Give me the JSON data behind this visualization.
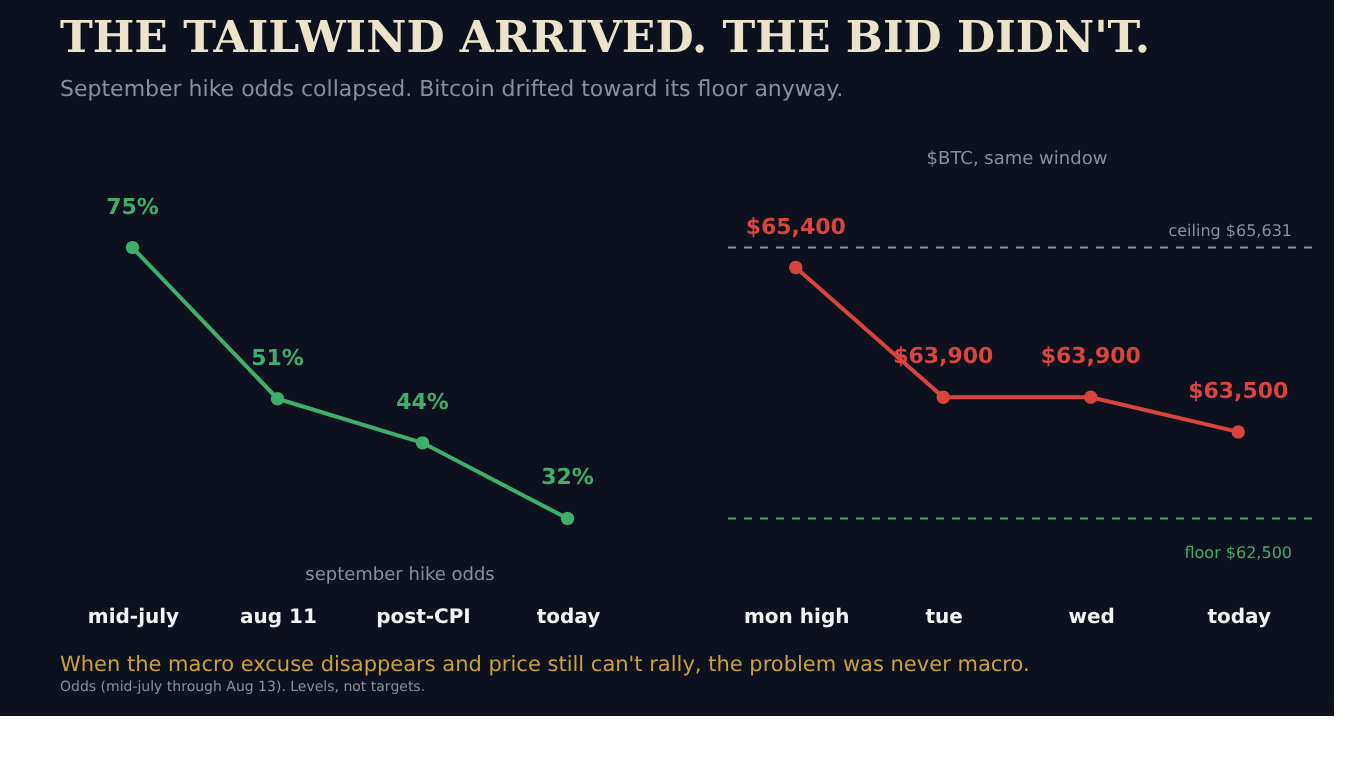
{
  "chart_data": [
    {
      "type": "line",
      "title": "THE TAILWIND ARRIVED. THE BID DIDN'T.",
      "subtitle": "September hike odds collapsed. Bitcoin drifted toward its floor anyway.",
      "categories": [
        "mid-july",
        "aug 11",
        "post-CPI",
        "today"
      ],
      "series": [
        {
          "color": "#3fae6a",
          "values": [
            75,
            51,
            44,
            32
          ],
          "value_labels": [
            "75%",
            "51%",
            "44%",
            "32%"
          ]
        }
      ],
      "marker": "circle",
      "line_style": "solid",
      "tick_labels": "x",
      "annotations": [
        "september hike odds",
        "When the macro excuse disappears and price still can't rally, the problem was never macro.",
        "Odds (mid-july through Aug 13). Levels, not targets."
      ]
    },
    {
      "type": "line",
      "title": "$BTC, same window",
      "categories": [
        "mon high",
        "tue",
        "wed",
        "today"
      ],
      "series": [
        {
          "color": "#d9443f",
          "values": [
            65400,
            63900,
            63900,
            63500
          ],
          "value_labels": [
            "$65,400",
            "$63,900",
            "$63,900",
            "$63,500"
          ]
        }
      ],
      "marker": "circle",
      "line_style": "solid",
      "tick_labels": "x",
      "ref_lines": [
        {
          "axis": "y",
          "value": 65631,
          "label": "ceiling $65,631",
          "color": "#8a8f9a",
          "line_style": "dashed"
        },
        {
          "axis": "y",
          "value": 62500,
          "label": "floor $62,500",
          "color": "#3fae6a",
          "line_style": "dashed"
        }
      ]
    }
  ]
}
